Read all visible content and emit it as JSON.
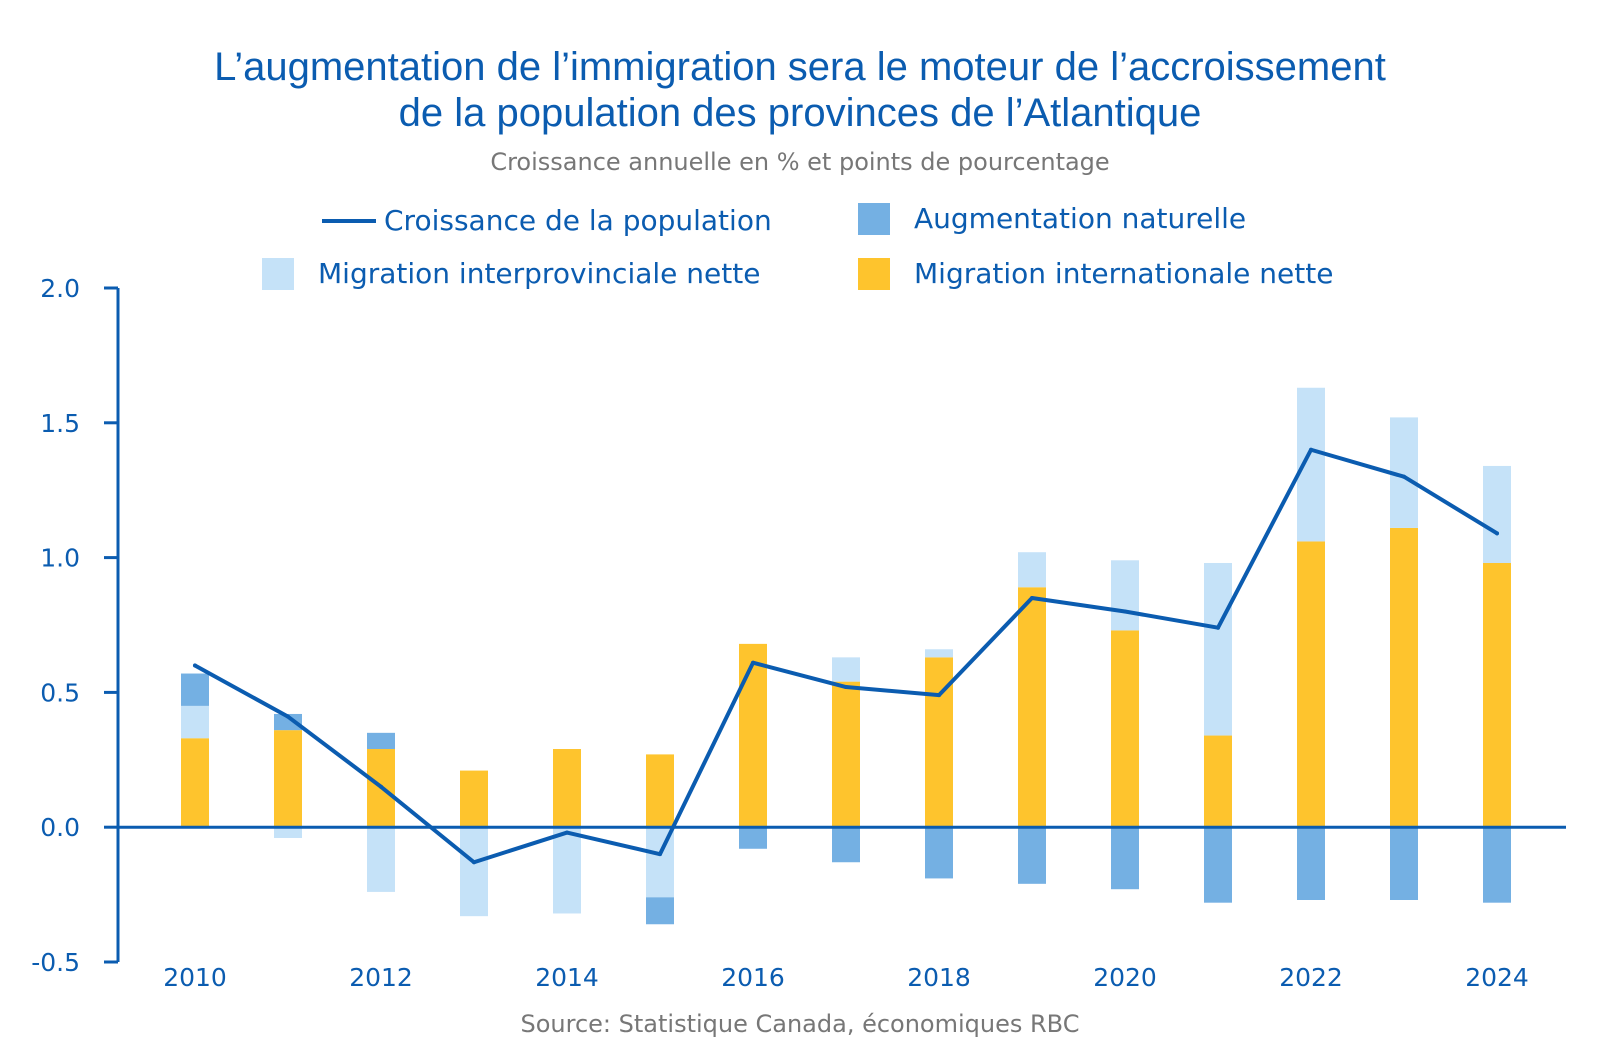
{
  "title_line1": "L’augmentation de l’immigration sera le moteur de l’accroissement",
  "title_line2": "de la population des provinces de l’Atlantique",
  "subtitle": "Croissance annuelle en % et points de pourcentage",
  "source": "Source: Statistique Canada, économiques RBC",
  "colors": {
    "text_blue": "#0b5cb0",
    "line": "#0b5cb0",
    "natural": "#74b0e3",
    "interprovincial": "#c5e2f8",
    "international": "#fec42d",
    "gray_text": "#777777"
  },
  "legend": [
    {
      "label": "Croissance de la population",
      "type": "line",
      "color": "#0b5cb0"
    },
    {
      "label": "Augmentation naturelle",
      "type": "box",
      "color": "#74b0e3"
    },
    {
      "label": "Migration interprovinciale nette",
      "type": "box",
      "color": "#c5e2f8"
    },
    {
      "label": "Migration internationale nette",
      "type": "box",
      "color": "#fec42d"
    }
  ],
  "chart_data": {
    "type": "bar",
    "stacked": true,
    "years": [
      2010,
      2011,
      2012,
      2013,
      2014,
      2015,
      2016,
      2017,
      2018,
      2019,
      2020,
      2021,
      2022,
      2023,
      2024
    ],
    "series": [
      {
        "name": "Migration internationale nette",
        "type": "bar",
        "values": [
          0.33,
          0.36,
          0.29,
          0.21,
          0.29,
          0.27,
          0.68,
          0.54,
          0.63,
          0.89,
          0.73,
          0.34,
          1.06,
          1.11,
          0.98
        ]
      },
      {
        "name": "Migration interprovinciale nette",
        "type": "bar",
        "values": [
          0.12,
          -0.04,
          -0.24,
          -0.33,
          -0.32,
          -0.26,
          0.0,
          0.09,
          0.03,
          0.13,
          0.26,
          0.64,
          0.57,
          0.41,
          0.36
        ]
      },
      {
        "name": "Augmentation naturelle",
        "type": "bar",
        "values": [
          0.12,
          0.06,
          0.06,
          0.0,
          0.0,
          -0.1,
          -0.08,
          -0.13,
          -0.19,
          -0.21,
          -0.23,
          -0.28,
          -0.27,
          -0.27,
          -0.28
        ]
      },
      {
        "name": "Croissance de la population",
        "type": "line",
        "values": [
          0.6,
          0.41,
          0.15,
          -0.13,
          -0.02,
          -0.1,
          0.61,
          0.52,
          0.49,
          0.85,
          0.8,
          0.74,
          1.4,
          1.3,
          1.09
        ]
      }
    ],
    "xticks": [
      "2010",
      "2012",
      "2014",
      "2016",
      "2018",
      "2020",
      "2022",
      "2024"
    ],
    "yticks": [
      "2.0",
      "1.5",
      "1.0",
      "0.5",
      "0.0",
      "-0.5"
    ],
    "ylim": [
      -0.5,
      2.0
    ],
    "xlabel": "",
    "ylabel": "",
    "legend_position": "top"
  }
}
